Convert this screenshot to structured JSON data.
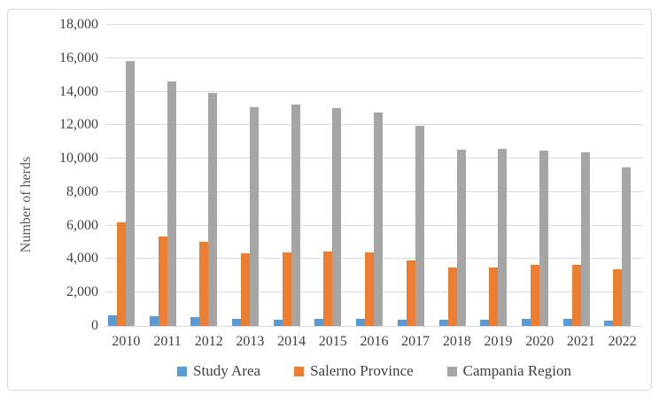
{
  "chart_data": {
    "type": "bar",
    "title": "",
    "xlabel": "",
    "ylabel": "Number of herds",
    "categories": [
      "2010",
      "2011",
      "2012",
      "2013",
      "2014",
      "2015",
      "2016",
      "2017",
      "2018",
      "2019",
      "2020",
      "2021",
      "2022"
    ],
    "series": [
      {
        "name": "Study Area",
        "color": "#5B9BD5",
        "values": [
          620,
          570,
          550,
          410,
          390,
          450,
          450,
          390,
          370,
          390,
          410,
          450,
          320
        ]
      },
      {
        "name": "Salerno Province",
        "color": "#ED7D31",
        "values": [
          6200,
          5350,
          5050,
          4350,
          4400,
          4450,
          4400,
          3900,
          3500,
          3500,
          3650,
          3650,
          3400
        ]
      },
      {
        "name": "Campania Region",
        "color": "#A5A5A5",
        "values": [
          15850,
          14600,
          13950,
          13100,
          13250,
          13000,
          12750,
          11950,
          10550,
          10600,
          10500,
          10400,
          9500
        ]
      }
    ],
    "ylim": [
      0,
      18000
    ],
    "ytick_step": 2000,
    "ytick_labels": [
      "0",
      "2,000",
      "4,000",
      "6,000",
      "8,000",
      "10,000",
      "12,000",
      "14,000",
      "16,000",
      "18,000"
    ],
    "grid": true,
    "legend_position": "bottom"
  },
  "colors": {
    "gridline": "#D9D9D9",
    "frame_border": "#D7D7D7",
    "axis_text": "#404040",
    "axis_title_text": "#595959",
    "background": "#FFFFFF"
  }
}
